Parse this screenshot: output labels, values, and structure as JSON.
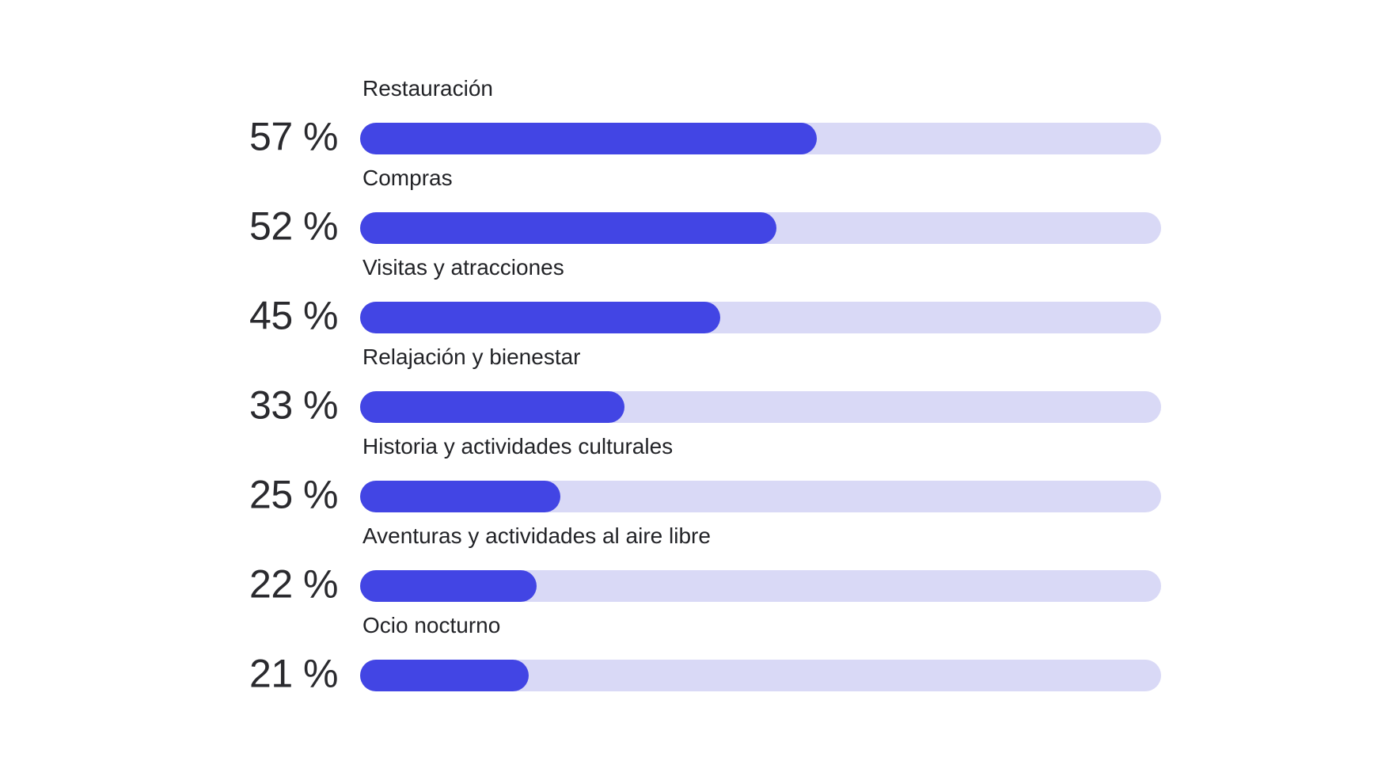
{
  "chart_data": {
    "type": "bar",
    "orientation": "horizontal",
    "title": "",
    "xlabel": "",
    "ylabel": "",
    "xlim": [
      0,
      100
    ],
    "unit": "%",
    "grid": false,
    "legend": "none",
    "categories": [
      "Restauración",
      "Compras",
      "Visitas y atracciones",
      "Relajación y bienestar",
      "Historia y actividades culturales",
      "Aventuras y actividades al aire libre",
      "Ocio nocturno"
    ],
    "values": [
      57,
      52,
      45,
      33,
      25,
      22,
      21
    ],
    "value_labels": [
      "57 %",
      "52 %",
      "45 %",
      "33 %",
      "25 %",
      "22 %",
      "21 %"
    ],
    "colors": {
      "fill": "#4245e4",
      "track": "#d9d9f6",
      "value_text": "#2a2a2e",
      "label_text": "#222327",
      "bg": "#ffffff"
    }
  }
}
